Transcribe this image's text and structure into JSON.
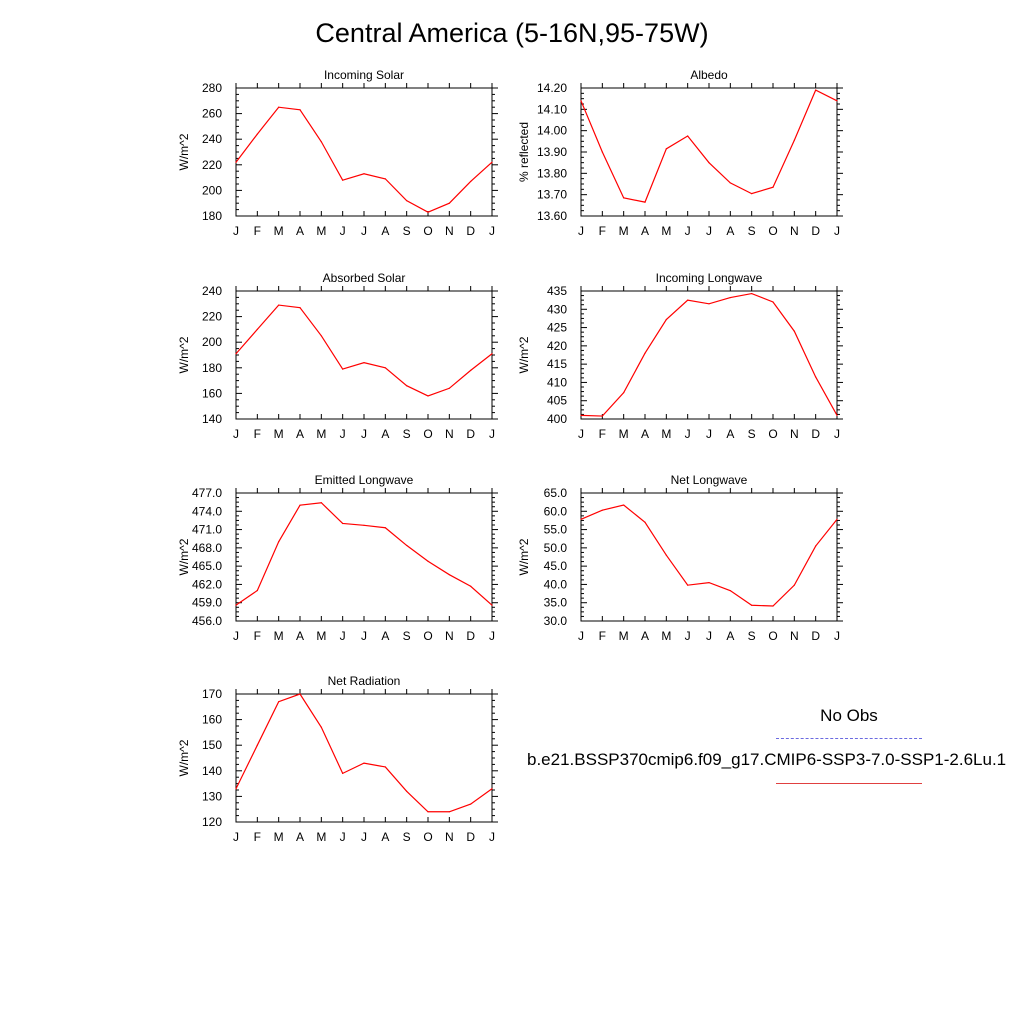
{
  "page": {
    "title": "Central America (5-16N,95-75W)"
  },
  "legend": {
    "obs_label": "No Obs",
    "model_label": "b.e21.BSSP370cmip6.f09_g17.CMIP6-SSP3-7.0-SSP1-2.6Lu.1",
    "obs_color": "#6a6ae0",
    "model_color": "#e04040"
  },
  "chart_data": [
    {
      "type": "line",
      "title": "Incoming Solar",
      "xlabel": "",
      "ylabel": "W/m^2",
      "categories": [
        "J",
        "F",
        "M",
        "A",
        "M",
        "J",
        "J",
        "A",
        "S",
        "O",
        "N",
        "D",
        "J"
      ],
      "ylim": [
        180,
        280
      ],
      "yticks": [
        "180",
        "200",
        "220",
        "240",
        "260",
        "280"
      ],
      "series": [
        {
          "color": "#ff0000",
          "values": [
            222,
            244,
            265,
            263,
            238,
            208,
            213,
            209,
            192,
            183,
            190,
            207,
            222
          ]
        }
      ]
    },
    {
      "type": "line",
      "title": "Albedo",
      "xlabel": "",
      "ylabel": "% reflected",
      "categories": [
        "J",
        "F",
        "M",
        "A",
        "M",
        "J",
        "J",
        "A",
        "S",
        "O",
        "N",
        "D",
        "J"
      ],
      "ylim": [
        13.6,
        14.2
      ],
      "yticks": [
        "13.60",
        "13.70",
        "13.80",
        "13.90",
        "14.00",
        "14.10",
        "14.20"
      ],
      "series": [
        {
          "color": "#ff0000",
          "values": [
            14.14,
            13.9,
            13.685,
            13.665,
            13.915,
            13.975,
            13.85,
            13.755,
            13.705,
            13.735,
            13.955,
            14.19,
            14.14
          ]
        }
      ]
    },
    {
      "type": "line",
      "title": "Absorbed Solar",
      "xlabel": "",
      "ylabel": "W/m^2",
      "categories": [
        "J",
        "F",
        "M",
        "A",
        "M",
        "J",
        "J",
        "A",
        "S",
        "O",
        "N",
        "D",
        "J"
      ],
      "ylim": [
        140,
        240
      ],
      "yticks": [
        "140",
        "160",
        "180",
        "200",
        "220",
        "240"
      ],
      "series": [
        {
          "color": "#ff0000",
          "values": [
            191,
            210,
            229,
            227,
            205,
            179,
            184,
            180,
            166,
            158,
            164,
            178,
            191
          ]
        }
      ]
    },
    {
      "type": "line",
      "title": "Incoming Longwave",
      "xlabel": "",
      "ylabel": "W/m^2",
      "categories": [
        "J",
        "F",
        "M",
        "A",
        "M",
        "J",
        "J",
        "A",
        "S",
        "O",
        "N",
        "D",
        "J"
      ],
      "ylim": [
        400,
        435
      ],
      "yticks": [
        "400",
        "405",
        "410",
        "415",
        "420",
        "425",
        "430",
        "435"
      ],
      "series": [
        {
          "color": "#ff0000",
          "values": [
            401,
            400.8,
            407.2,
            418,
            427.2,
            432.5,
            431.5,
            433.2,
            434.3,
            432,
            424,
            411.5,
            401
          ]
        }
      ]
    },
    {
      "type": "line",
      "title": "Emitted Longwave",
      "xlabel": "",
      "ylabel": "W/m^2",
      "categories": [
        "J",
        "F",
        "M",
        "A",
        "M",
        "J",
        "J",
        "A",
        "S",
        "O",
        "N",
        "D",
        "J"
      ],
      "ylim": [
        456,
        477
      ],
      "yticks": [
        "456.0",
        "459.0",
        "462.0",
        "465.0",
        "468.0",
        "471.0",
        "474.0",
        "477.0"
      ],
      "series": [
        {
          "color": "#ff0000",
          "values": [
            458.6,
            461,
            469,
            475,
            475.4,
            472,
            471.7,
            471.3,
            468.4,
            465.8,
            463.6,
            461.7,
            458.6
          ]
        }
      ]
    },
    {
      "type": "line",
      "title": "Net Longwave",
      "xlabel": "",
      "ylabel": "W/m^2",
      "categories": [
        "J",
        "F",
        "M",
        "A",
        "M",
        "J",
        "J",
        "A",
        "S",
        "O",
        "N",
        "D",
        "J"
      ],
      "ylim": [
        30,
        65
      ],
      "yticks": [
        "30.0",
        "35.0",
        "40.0",
        "45.0",
        "50.0",
        "55.0",
        "60.0",
        "65.0"
      ],
      "series": [
        {
          "color": "#ff0000",
          "values": [
            57.8,
            60.3,
            61.7,
            57,
            48,
            39.8,
            40.5,
            38.3,
            34.3,
            34.1,
            39.8,
            50.5,
            57.8
          ]
        }
      ]
    },
    {
      "type": "line",
      "title": "Net Radiation",
      "xlabel": "",
      "ylabel": "W/m^2",
      "categories": [
        "J",
        "F",
        "M",
        "A",
        "M",
        "J",
        "J",
        "A",
        "S",
        "O",
        "N",
        "D",
        "J"
      ],
      "ylim": [
        120,
        170
      ],
      "yticks": [
        "120",
        "130",
        "140",
        "150",
        "160",
        "170"
      ],
      "series": [
        {
          "color": "#ff0000",
          "values": [
            133,
            150,
            167,
            170,
            157,
            139,
            143,
            141.5,
            132,
            124,
            124,
            127,
            133
          ]
        }
      ]
    }
  ]
}
